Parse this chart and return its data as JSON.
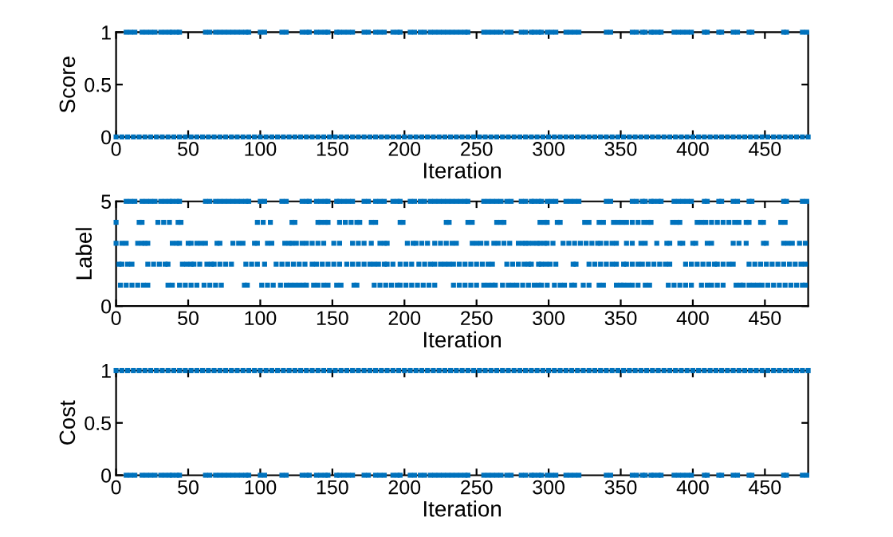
{
  "chart_data": [
    {
      "type": "scatter",
      "xlabel": "Iteration",
      "ylabel": "Score",
      "xlim": [
        0,
        480
      ],
      "xticks": [
        0,
        50,
        100,
        150,
        200,
        250,
        300,
        350,
        400,
        450
      ],
      "ylim": [
        0,
        1
      ],
      "yticks": [
        0,
        0.5,
        1
      ],
      "marker": "square",
      "series": [
        {
          "color": "#0072bd",
          "x": [
            7,
            10,
            13,
            18,
            21,
            24,
            27,
            31,
            34,
            37,
            39,
            42,
            44,
            62,
            65,
            69,
            72,
            75,
            78,
            81,
            84,
            87,
            90,
            92,
            100,
            103,
            115,
            118,
            129,
            132,
            134,
            139,
            142,
            145,
            147,
            153,
            155,
            158,
            161,
            164,
            172,
            175,
            180,
            183,
            186,
            192,
            195,
            197,
            204,
            207,
            211,
            214,
            218,
            221,
            224,
            227,
            230,
            233,
            236,
            239,
            242,
            244,
            255,
            258,
            261,
            264,
            267,
            271,
            274,
            281,
            284,
            288,
            290,
            293,
            295,
            299,
            302,
            305,
            312,
            315,
            318,
            321,
            340,
            343,
            358,
            361,
            365,
            367,
            371,
            373,
            376,
            378,
            387,
            390,
            393,
            396,
            399,
            408,
            410,
            418,
            420,
            428,
            431,
            439,
            441,
            463,
            465,
            476,
            479
          ],
          "values": [
            1,
            1,
            1,
            1,
            1,
            1,
            1,
            1,
            1,
            1,
            1,
            1,
            1,
            1,
            1,
            1,
            1,
            1,
            1,
            1,
            1,
            1,
            1,
            1,
            1,
            1,
            1,
            1,
            1,
            1,
            1,
            1,
            1,
            1,
            1,
            1,
            1,
            1,
            1,
            1,
            1,
            1,
            1,
            1,
            1,
            1,
            1,
            1,
            1,
            1,
            1,
            1,
            1,
            1,
            1,
            1,
            1,
            1,
            1,
            1,
            1,
            1,
            1,
            1,
            1,
            1,
            1,
            1,
            1,
            1,
            1,
            1,
            1,
            1,
            1,
            1,
            1,
            1,
            1,
            1,
            1,
            1,
            1,
            1,
            1,
            1,
            1,
            1,
            1,
            1,
            1,
            1,
            1,
            1,
            1,
            1,
            1,
            1,
            1,
            1,
            1,
            1,
            1,
            1,
            1,
            1,
            1,
            1,
            1
          ]
        },
        {
          "color": "#0072bd",
          "x": [
            0,
            4,
            8,
            12,
            16,
            20,
            24,
            28,
            32,
            36,
            40,
            44,
            48,
            52,
            56,
            60,
            64,
            68,
            72,
            76,
            80,
            84,
            88,
            92,
            96,
            100,
            104,
            108,
            112,
            116,
            120,
            124,
            128,
            132,
            136,
            140,
            144,
            148,
            152,
            156,
            160,
            164,
            168,
            172,
            176,
            180,
            184,
            188,
            192,
            196,
            200,
            204,
            208,
            212,
            216,
            220,
            224,
            228,
            232,
            236,
            240,
            244,
            248,
            252,
            256,
            260,
            264,
            268,
            272,
            276,
            280,
            284,
            288,
            292,
            296,
            300,
            304,
            308,
            312,
            316,
            320,
            324,
            328,
            332,
            336,
            340,
            344,
            348,
            352,
            356,
            360,
            364,
            368,
            372,
            376,
            380,
            384,
            388,
            392,
            396,
            400,
            404,
            408,
            412,
            416,
            420,
            424,
            428,
            432,
            436,
            440,
            444,
            448,
            452,
            456,
            460,
            464,
            468,
            472,
            476,
            480
          ],
          "values": [
            0,
            0,
            0,
            0,
            0,
            0,
            0,
            0,
            0,
            0,
            0,
            0,
            0,
            0,
            0,
            0,
            0,
            0,
            0,
            0,
            0,
            0,
            0,
            0,
            0,
            0,
            0,
            0,
            0,
            0,
            0,
            0,
            0,
            0,
            0,
            0,
            0,
            0,
            0,
            0,
            0,
            0,
            0,
            0,
            0,
            0,
            0,
            0,
            0,
            0,
            0,
            0,
            0,
            0,
            0,
            0,
            0,
            0,
            0,
            0,
            0,
            0,
            0,
            0,
            0,
            0,
            0,
            0,
            0,
            0,
            0,
            0,
            0,
            0,
            0,
            0,
            0,
            0,
            0,
            0,
            0,
            0,
            0,
            0,
            0,
            0,
            0,
            0,
            0,
            0,
            0,
            0,
            0,
            0,
            0,
            0,
            0,
            0,
            0,
            0,
            0,
            0,
            0,
            0,
            0,
            0,
            0,
            0,
            0,
            0,
            0,
            0,
            0,
            0,
            0,
            0,
            0,
            0,
            0,
            0,
            0
          ]
        }
      ]
    },
    {
      "type": "scatter",
      "xlabel": "Iteration",
      "ylabel": "Label",
      "xlim": [
        0,
        480
      ],
      "xticks": [
        0,
        50,
        100,
        150,
        200,
        250,
        300,
        350,
        400,
        450
      ],
      "ylim": [
        0,
        5
      ],
      "yticks": [
        0,
        5
      ],
      "marker": "square",
      "series": [
        {
          "color": "#0072bd",
          "x": [
            7,
            10,
            13,
            18,
            21,
            24,
            27,
            31,
            34,
            37,
            39,
            42,
            44,
            62,
            65,
            69,
            72,
            75,
            78,
            81,
            84,
            87,
            90,
            92,
            100,
            103,
            115,
            118,
            129,
            132,
            134,
            139,
            142,
            145,
            147,
            153,
            155,
            158,
            161,
            164,
            172,
            175,
            180,
            183,
            186,
            192,
            195,
            197,
            204,
            207,
            211,
            214,
            218,
            221,
            224,
            227,
            230,
            233,
            236,
            239,
            242,
            244,
            255,
            258,
            261,
            264,
            267,
            271,
            274,
            281,
            284,
            288,
            290,
            293,
            295,
            299,
            302,
            305,
            312,
            315,
            318,
            321,
            340,
            343,
            358,
            361,
            365,
            367,
            371,
            373,
            376,
            378,
            387,
            390,
            393,
            396,
            399,
            408,
            410,
            418,
            420,
            428,
            431,
            439,
            441,
            463,
            465,
            476,
            479
          ],
          "values": [
            5,
            5,
            5,
            5,
            5,
            5,
            5,
            5,
            5,
            5,
            5,
            5,
            5,
            5,
            5,
            5,
            5,
            5,
            5,
            5,
            5,
            5,
            5,
            5,
            5,
            5,
            5,
            5,
            5,
            5,
            5,
            5,
            5,
            5,
            5,
            5,
            5,
            5,
            5,
            5,
            5,
            5,
            5,
            5,
            5,
            5,
            5,
            5,
            5,
            5,
            5,
            5,
            5,
            5,
            5,
            5,
            5,
            5,
            5,
            5,
            5,
            5,
            5,
            5,
            5,
            5,
            5,
            5,
            5,
            5,
            5,
            5,
            5,
            5,
            5,
            5,
            5,
            5,
            5,
            5,
            5,
            5,
            5,
            5,
            5,
            5,
            5,
            5,
            5,
            5,
            5,
            5,
            5,
            5,
            5,
            5,
            5,
            5,
            5,
            5,
            5,
            5,
            5,
            5,
            5,
            5,
            5,
            5,
            5
          ]
        },
        {
          "color": "#0072bd",
          "x": [
            0,
            16,
            18,
            29,
            33,
            37,
            43,
            45,
            98,
            102,
            107,
            122,
            124,
            140,
            142,
            145,
            147,
            155,
            159,
            163,
            167,
            169,
            177,
            180,
            197,
            199,
            229,
            231,
            244,
            247,
            264,
            267,
            269,
            294,
            297,
            299,
            306,
            308,
            325,
            328,
            335,
            338,
            345,
            348,
            351,
            354,
            358,
            362,
            366,
            369,
            371,
            386,
            389,
            391,
            403,
            406,
            409,
            413,
            417,
            421,
            425,
            429,
            432,
            437,
            439,
            447,
            449,
            461,
            464
          ],
          "values": [
            4,
            4,
            4,
            4,
            4,
            4,
            4,
            4,
            4,
            4,
            4,
            4,
            4,
            4,
            4,
            4,
            4,
            4,
            4,
            4,
            4,
            4,
            4,
            4,
            4,
            4,
            4,
            4,
            4,
            4,
            4,
            4,
            4,
            4,
            4,
            4,
            4,
            4,
            4,
            4,
            4,
            4,
            4,
            4,
            4,
            4,
            4,
            4,
            4,
            4,
            4,
            4,
            4,
            4,
            4,
            4,
            4,
            4,
            4,
            4,
            4,
            4,
            4,
            4,
            4,
            4,
            4,
            4,
            4
          ]
        },
        {
          "color": "#0072bd",
          "x": [
            0,
            4,
            7,
            15,
            18,
            20,
            22,
            39,
            42,
            44,
            50,
            52,
            56,
            59,
            62,
            70,
            72,
            81,
            85,
            88,
            96,
            98,
            105,
            108,
            117,
            120,
            122,
            125,
            129,
            132,
            136,
            140,
            144,
            151,
            155,
            164,
            168,
            172,
            177,
            183,
            186,
            188,
            202,
            206,
            208,
            212,
            216,
            221,
            225,
            229,
            233,
            236,
            247,
            250,
            253,
            257,
            262,
            265,
            269,
            273,
            279,
            282,
            284,
            286,
            289,
            292,
            294,
            297,
            299,
            303,
            310,
            314,
            318,
            322,
            326,
            330,
            334,
            336,
            340,
            344,
            347,
            354,
            358,
            364,
            367,
            375,
            382,
            384,
            391,
            393,
            400,
            402,
            410,
            413,
            428,
            432,
            437,
            449,
            451,
            463,
            466,
            469,
            474,
            478
          ],
          "values": [
            3,
            3,
            3,
            3,
            3,
            3,
            3,
            3,
            3,
            3,
            3,
            3,
            3,
            3,
            3,
            3,
            3,
            3,
            3,
            3,
            3,
            3,
            3,
            3,
            3,
            3,
            3,
            3,
            3,
            3,
            3,
            3,
            3,
            3,
            3,
            3,
            3,
            3,
            3,
            3,
            3,
            3,
            3,
            3,
            3,
            3,
            3,
            3,
            3,
            3,
            3,
            3,
            3,
            3,
            3,
            3,
            3,
            3,
            3,
            3,
            3,
            3,
            3,
            3,
            3,
            3,
            3,
            3,
            3,
            3,
            3,
            3,
            3,
            3,
            3,
            3,
            3,
            3,
            3,
            3,
            3,
            3,
            3,
            3,
            3,
            3,
            3,
            3,
            3,
            3,
            3,
            3,
            3,
            3,
            3,
            3,
            3,
            3,
            3,
            3,
            3,
            3,
            3,
            3
          ]
        },
        {
          "color": "#0072bd",
          "x": [
            2,
            4,
            8,
            11,
            22,
            26,
            30,
            34,
            36,
            46,
            49,
            52,
            54,
            58,
            63,
            66,
            68,
            72,
            76,
            80,
            90,
            94,
            98,
            103,
            111,
            115,
            119,
            123,
            127,
            131,
            136,
            139,
            143,
            147,
            151,
            155,
            160,
            164,
            168,
            172,
            176,
            179,
            182,
            186,
            188,
            192,
            197,
            201,
            205,
            210,
            214,
            218,
            221,
            225,
            228,
            231,
            234,
            238,
            242,
            246,
            250,
            254,
            258,
            261,
            271,
            275,
            279,
            283,
            286,
            288,
            293,
            295,
            298,
            301,
            305,
            317,
            319,
            328,
            332,
            336,
            340,
            344,
            347,
            352,
            354,
            358,
            362,
            365,
            369,
            373,
            377,
            381,
            384,
            395,
            399,
            403,
            407,
            411,
            415,
            417,
            421,
            425,
            428,
            439,
            443,
            447,
            451,
            455,
            459,
            463,
            467,
            471,
            475,
            478
          ],
          "values": [
            2,
            2,
            2,
            2,
            2,
            2,
            2,
            2,
            2,
            2,
            2,
            2,
            2,
            2,
            2,
            2,
            2,
            2,
            2,
            2,
            2,
            2,
            2,
            2,
            2,
            2,
            2,
            2,
            2,
            2,
            2,
            2,
            2,
            2,
            2,
            2,
            2,
            2,
            2,
            2,
            2,
            2,
            2,
            2,
            2,
            2,
            2,
            2,
            2,
            2,
            2,
            2,
            2,
            2,
            2,
            2,
            2,
            2,
            2,
            2,
            2,
            2,
            2,
            2,
            2,
            2,
            2,
            2,
            2,
            2,
            2,
            2,
            2,
            2,
            2,
            2,
            2,
            2,
            2,
            2,
            2,
            2,
            2,
            2,
            2,
            2,
            2,
            2,
            2,
            2,
            2,
            2,
            2,
            2,
            2,
            2,
            2,
            2,
            2,
            2,
            2,
            2,
            2,
            2,
            2,
            2,
            2,
            2,
            2,
            2,
            2,
            2,
            2,
            2
          ]
        },
        {
          "color": "#0072bd",
          "x": [
            3,
            7,
            11,
            15,
            19,
            22,
            36,
            39,
            44,
            48,
            52,
            56,
            61,
            65,
            69,
            73,
            89,
            91,
            101,
            105,
            109,
            114,
            118,
            121,
            124,
            127,
            130,
            132,
            137,
            140,
            144,
            147,
            153,
            156,
            165,
            167,
            179,
            183,
            187,
            191,
            195,
            197,
            201,
            205,
            209,
            213,
            217,
            221,
            234,
            238,
            242,
            246,
            250,
            255,
            258,
            261,
            263,
            268,
            272,
            275,
            278,
            282,
            286,
            290,
            293,
            295,
            299,
            304,
            308,
            311,
            316,
            318,
            324,
            328,
            335,
            338,
            347,
            350,
            352,
            355,
            358,
            362,
            367,
            370,
            383,
            387,
            391,
            395,
            399,
            406,
            410,
            413,
            417,
            421,
            430,
            433,
            435,
            439,
            442,
            445,
            448,
            452,
            456,
            460,
            464,
            468,
            472,
            476,
            478
          ],
          "values": [
            1,
            1,
            1,
            1,
            1,
            1,
            1,
            1,
            1,
            1,
            1,
            1,
            1,
            1,
            1,
            1,
            1,
            1,
            1,
            1,
            1,
            1,
            1,
            1,
            1,
            1,
            1,
            1,
            1,
            1,
            1,
            1,
            1,
            1,
            1,
            1,
            1,
            1,
            1,
            1,
            1,
            1,
            1,
            1,
            1,
            1,
            1,
            1,
            1,
            1,
            1,
            1,
            1,
            1,
            1,
            1,
            1,
            1,
            1,
            1,
            1,
            1,
            1,
            1,
            1,
            1,
            1,
            1,
            1,
            1,
            1,
            1,
            1,
            1,
            1,
            1,
            1,
            1,
            1,
            1,
            1,
            1,
            1,
            1,
            1,
            1,
            1,
            1,
            1,
            1,
            1,
            1,
            1,
            1,
            1,
            1,
            1,
            1,
            1,
            1,
            1,
            1,
            1,
            1,
            1,
            1,
            1,
            1,
            1
          ]
        }
      ]
    },
    {
      "type": "scatter",
      "xlabel": "Iteration",
      "ylabel": "Cost",
      "xlim": [
        0,
        480
      ],
      "xticks": [
        0,
        50,
        100,
        150,
        200,
        250,
        300,
        350,
        400,
        450
      ],
      "ylim": [
        0,
        1
      ],
      "yticks": [
        0,
        0.5,
        1
      ],
      "marker": "square",
      "series": [
        {
          "color": "#0072bd",
          "x": [
            0,
            4,
            8,
            12,
            16,
            20,
            24,
            28,
            32,
            36,
            40,
            44,
            48,
            52,
            56,
            60,
            64,
            68,
            72,
            76,
            80,
            84,
            88,
            92,
            96,
            100,
            104,
            108,
            112,
            116,
            120,
            124,
            128,
            132,
            136,
            140,
            144,
            148,
            152,
            156,
            160,
            164,
            168,
            172,
            176,
            180,
            184,
            188,
            192,
            196,
            200,
            204,
            208,
            212,
            216,
            220,
            224,
            228,
            232,
            236,
            240,
            244,
            248,
            252,
            256,
            260,
            264,
            268,
            272,
            276,
            280,
            284,
            288,
            292,
            296,
            300,
            304,
            308,
            312,
            316,
            320,
            324,
            328,
            332,
            336,
            340,
            344,
            348,
            352,
            356,
            360,
            364,
            368,
            372,
            376,
            380,
            384,
            388,
            392,
            396,
            400,
            404,
            408,
            412,
            416,
            420,
            424,
            428,
            432,
            436,
            440,
            444,
            448,
            452,
            456,
            460,
            464,
            468,
            472,
            476,
            480
          ],
          "values": [
            1,
            1,
            1,
            1,
            1,
            1,
            1,
            1,
            1,
            1,
            1,
            1,
            1,
            1,
            1,
            1,
            1,
            1,
            1,
            1,
            1,
            1,
            1,
            1,
            1,
            1,
            1,
            1,
            1,
            1,
            1,
            1,
            1,
            1,
            1,
            1,
            1,
            1,
            1,
            1,
            1,
            1,
            1,
            1,
            1,
            1,
            1,
            1,
            1,
            1,
            1,
            1,
            1,
            1,
            1,
            1,
            1,
            1,
            1,
            1,
            1,
            1,
            1,
            1,
            1,
            1,
            1,
            1,
            1,
            1,
            1,
            1,
            1,
            1,
            1,
            1,
            1,
            1,
            1,
            1,
            1,
            1,
            1,
            1,
            1,
            1,
            1,
            1,
            1,
            1,
            1,
            1,
            1,
            1,
            1,
            1,
            1,
            1,
            1,
            1,
            1,
            1,
            1,
            1,
            1,
            1,
            1,
            1,
            1,
            1,
            1,
            1,
            1,
            1,
            1,
            1,
            1,
            1,
            1,
            1,
            1
          ]
        },
        {
          "color": "#0072bd",
          "x": [
            7,
            10,
            13,
            18,
            21,
            24,
            27,
            31,
            34,
            37,
            39,
            42,
            44,
            62,
            65,
            69,
            72,
            75,
            78,
            81,
            84,
            87,
            90,
            92,
            100,
            103,
            115,
            118,
            129,
            132,
            134,
            139,
            142,
            145,
            147,
            153,
            155,
            158,
            161,
            164,
            172,
            175,
            180,
            183,
            186,
            192,
            195,
            197,
            204,
            207,
            211,
            214,
            218,
            221,
            224,
            227,
            230,
            233,
            236,
            239,
            242,
            244,
            255,
            258,
            261,
            264,
            267,
            271,
            274,
            281,
            284,
            288,
            290,
            293,
            295,
            299,
            302,
            305,
            312,
            315,
            318,
            321,
            340,
            343,
            358,
            361,
            365,
            367,
            371,
            373,
            376,
            378,
            387,
            390,
            393,
            396,
            399,
            408,
            410,
            418,
            420,
            428,
            431,
            439,
            441,
            463,
            465,
            476,
            479
          ],
          "values": [
            0,
            0,
            0,
            0,
            0,
            0,
            0,
            0,
            0,
            0,
            0,
            0,
            0,
            0,
            0,
            0,
            0,
            0,
            0,
            0,
            0,
            0,
            0,
            0,
            0,
            0,
            0,
            0,
            0,
            0,
            0,
            0,
            0,
            0,
            0,
            0,
            0,
            0,
            0,
            0,
            0,
            0,
            0,
            0,
            0,
            0,
            0,
            0,
            0,
            0,
            0,
            0,
            0,
            0,
            0,
            0,
            0,
            0,
            0,
            0,
            0,
            0,
            0,
            0,
            0,
            0,
            0,
            0,
            0,
            0,
            0,
            0,
            0,
            0,
            0,
            0,
            0,
            0,
            0,
            0,
            0,
            0,
            0,
            0,
            0,
            0,
            0,
            0,
            0,
            0,
            0,
            0,
            0,
            0,
            0,
            0,
            0,
            0,
            0,
            0,
            0,
            0,
            0,
            0,
            0,
            0,
            0,
            0,
            0
          ]
        }
      ]
    }
  ]
}
